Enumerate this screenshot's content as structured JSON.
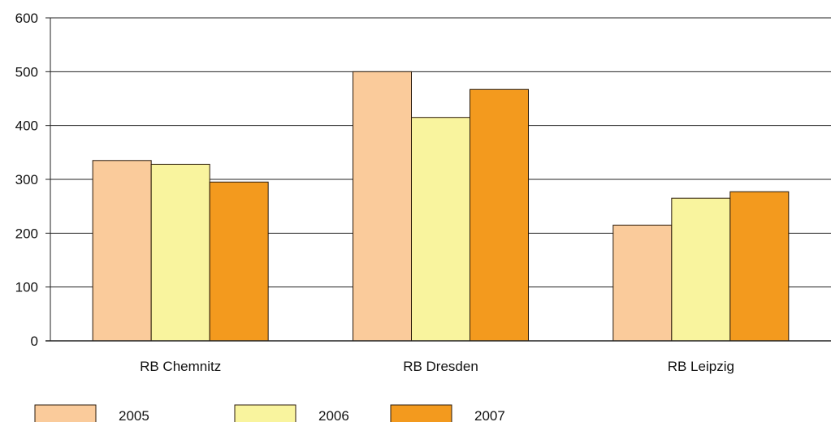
{
  "chart_data": {
    "type": "bar",
    "categories": [
      "RB Chemnitz",
      "RB Dresden",
      "RB Leipzig"
    ],
    "series": [
      {
        "name": "2005",
        "values": [
          335,
          500,
          215
        ],
        "color": "#FACB9B"
      },
      {
        "name": "2006",
        "values": [
          328,
          415,
          265
        ],
        "color": "#F9F49E"
      },
      {
        "name": "2007",
        "values": [
          295,
          467,
          277
        ],
        "color": "#F39A1E"
      }
    ],
    "ylim": [
      0,
      600
    ],
    "yticks": [
      "0",
      "100",
      "200",
      "300",
      "400",
      "500",
      "600"
    ],
    "grid": true,
    "legend": "bottom-left",
    "title": "",
    "xlabel": "",
    "ylabel": ""
  }
}
